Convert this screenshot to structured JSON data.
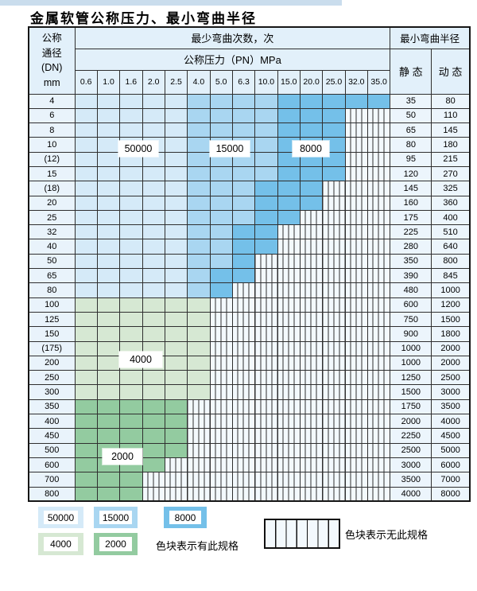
{
  "title": "金属软管公称压力、最小弯曲半径",
  "chart_data": {
    "type": "heatmap",
    "title": "金属软管公称压力、最小弯曲半径",
    "value_label": "最少弯曲次数，次",
    "x_label": "公称压力（PN）MPa",
    "x_categories": [
      "0.6",
      "1.0",
      "1.6",
      "2.0",
      "2.5",
      "4.0",
      "5.0",
      "6.3",
      "10.0",
      "15.0",
      "20.0",
      "25.0",
      "32.0",
      "35.0"
    ],
    "y_label": "公称通径(DN) mm",
    "y_categories": [
      "4",
      "6",
      "8",
      "10",
      "(12)",
      "15",
      "(18)",
      "20",
      "25",
      "32",
      "40",
      "50",
      "65",
      "80",
      "100",
      "125",
      "150",
      "(175)",
      "200",
      "250",
      "300",
      "350",
      "400",
      "450",
      "500",
      "600",
      "700",
      "800"
    ],
    "zone_legend": {
      "L": "50000",
      "M": "15000",
      "D": "8000",
      "G": "4000",
      "E": "2000",
      "X": "无此规格"
    },
    "radius_header": "最小弯曲半径",
    "static_header": "静 态",
    "dynamic_header": "动 态",
    "rows": [
      {
        "dn": "4",
        "zones": [
          "L",
          "L",
          "L",
          "L",
          "L",
          "M",
          "M",
          "M",
          "M",
          "D",
          "D",
          "D",
          "D",
          "D"
        ],
        "static": "35",
        "dynamic": "80"
      },
      {
        "dn": "6",
        "zones": [
          "L",
          "L",
          "L",
          "L",
          "L",
          "M",
          "M",
          "M",
          "M",
          "D",
          "D",
          "D",
          "X",
          "X"
        ],
        "static": "50",
        "dynamic": "110"
      },
      {
        "dn": "8",
        "zones": [
          "L",
          "L",
          "L",
          "L",
          "L",
          "M",
          "M",
          "M",
          "M",
          "D",
          "D",
          "D",
          "X",
          "X"
        ],
        "static": "65",
        "dynamic": "145"
      },
      {
        "dn": "10",
        "zones": [
          "L",
          "L",
          "L",
          "L",
          "L",
          "M",
          "M",
          "M",
          "M",
          "D",
          "D",
          "D",
          "X",
          "X"
        ],
        "static": "80",
        "dynamic": "180"
      },
      {
        "dn": "(12)",
        "zones": [
          "L",
          "L",
          "L",
          "L",
          "L",
          "M",
          "M",
          "M",
          "M",
          "D",
          "D",
          "D",
          "X",
          "X"
        ],
        "static": "95",
        "dynamic": "215"
      },
      {
        "dn": "15",
        "zones": [
          "L",
          "L",
          "L",
          "L",
          "L",
          "M",
          "M",
          "M",
          "M",
          "D",
          "D",
          "D",
          "X",
          "X"
        ],
        "static": "120",
        "dynamic": "270"
      },
      {
        "dn": "(18)",
        "zones": [
          "L",
          "L",
          "L",
          "L",
          "L",
          "M",
          "M",
          "M",
          "D",
          "D",
          "D",
          "X",
          "X",
          "X"
        ],
        "static": "145",
        "dynamic": "325"
      },
      {
        "dn": "20",
        "zones": [
          "L",
          "L",
          "L",
          "L",
          "L",
          "M",
          "M",
          "M",
          "D",
          "D",
          "D",
          "X",
          "X",
          "X"
        ],
        "static": "160",
        "dynamic": "360"
      },
      {
        "dn": "25",
        "zones": [
          "L",
          "L",
          "L",
          "L",
          "L",
          "M",
          "M",
          "M",
          "D",
          "D",
          "X",
          "X",
          "X",
          "X"
        ],
        "static": "175",
        "dynamic": "400"
      },
      {
        "dn": "32",
        "zones": [
          "L",
          "L",
          "L",
          "L",
          "L",
          "M",
          "M",
          "D",
          "D",
          "X",
          "X",
          "X",
          "X",
          "X"
        ],
        "static": "225",
        "dynamic": "510"
      },
      {
        "dn": "40",
        "zones": [
          "L",
          "L",
          "L",
          "L",
          "L",
          "M",
          "M",
          "D",
          "D",
          "X",
          "X",
          "X",
          "X",
          "X"
        ],
        "static": "280",
        "dynamic": "640"
      },
      {
        "dn": "50",
        "zones": [
          "L",
          "L",
          "L",
          "L",
          "L",
          "M",
          "M",
          "D",
          "X",
          "X",
          "X",
          "X",
          "X",
          "X"
        ],
        "static": "350",
        "dynamic": "800"
      },
      {
        "dn": "65",
        "zones": [
          "L",
          "L",
          "L",
          "L",
          "L",
          "M",
          "D",
          "D",
          "X",
          "X",
          "X",
          "X",
          "X",
          "X"
        ],
        "static": "390",
        "dynamic": "845"
      },
      {
        "dn": "80",
        "zones": [
          "L",
          "L",
          "L",
          "L",
          "L",
          "M",
          "D",
          "X",
          "X",
          "X",
          "X",
          "X",
          "X",
          "X"
        ],
        "static": "480",
        "dynamic": "1000"
      },
      {
        "dn": "100",
        "zones": [
          "G",
          "G",
          "G",
          "G",
          "G",
          "G",
          "X",
          "X",
          "X",
          "X",
          "X",
          "X",
          "X",
          "X"
        ],
        "static": "600",
        "dynamic": "1200"
      },
      {
        "dn": "125",
        "zones": [
          "G",
          "G",
          "G",
          "G",
          "G",
          "G",
          "X",
          "X",
          "X",
          "X",
          "X",
          "X",
          "X",
          "X"
        ],
        "static": "750",
        "dynamic": "1500"
      },
      {
        "dn": "150",
        "zones": [
          "G",
          "G",
          "G",
          "G",
          "G",
          "G",
          "X",
          "X",
          "X",
          "X",
          "X",
          "X",
          "X",
          "X"
        ],
        "static": "900",
        "dynamic": "1800"
      },
      {
        "dn": "(175)",
        "zones": [
          "G",
          "G",
          "G",
          "G",
          "G",
          "G",
          "X",
          "X",
          "X",
          "X",
          "X",
          "X",
          "X",
          "X"
        ],
        "static": "1000",
        "dynamic": "2000"
      },
      {
        "dn": "200",
        "zones": [
          "G",
          "G",
          "G",
          "G",
          "G",
          "G",
          "X",
          "X",
          "X",
          "X",
          "X",
          "X",
          "X",
          "X"
        ],
        "static": "1000",
        "dynamic": "2000"
      },
      {
        "dn": "250",
        "zones": [
          "G",
          "G",
          "G",
          "G",
          "G",
          "G",
          "X",
          "X",
          "X",
          "X",
          "X",
          "X",
          "X",
          "X"
        ],
        "static": "1250",
        "dynamic": "2500"
      },
      {
        "dn": "300",
        "zones": [
          "G",
          "G",
          "G",
          "G",
          "G",
          "G",
          "X",
          "X",
          "X",
          "X",
          "X",
          "X",
          "X",
          "X"
        ],
        "static": "1500",
        "dynamic": "3000"
      },
      {
        "dn": "350",
        "zones": [
          "E",
          "E",
          "E",
          "E",
          "E",
          "X",
          "X",
          "X",
          "X",
          "X",
          "X",
          "X",
          "X",
          "X"
        ],
        "static": "1750",
        "dynamic": "3500"
      },
      {
        "dn": "400",
        "zones": [
          "E",
          "E",
          "E",
          "E",
          "E",
          "X",
          "X",
          "X",
          "X",
          "X",
          "X",
          "X",
          "X",
          "X"
        ],
        "static": "2000",
        "dynamic": "4000"
      },
      {
        "dn": "450",
        "zones": [
          "E",
          "E",
          "E",
          "E",
          "E",
          "X",
          "X",
          "X",
          "X",
          "X",
          "X",
          "X",
          "X",
          "X"
        ],
        "static": "2250",
        "dynamic": "4500"
      },
      {
        "dn": "500",
        "zones": [
          "E",
          "E",
          "E",
          "E",
          "E",
          "X",
          "X",
          "X",
          "X",
          "X",
          "X",
          "X",
          "X",
          "X"
        ],
        "static": "2500",
        "dynamic": "5000"
      },
      {
        "dn": "600",
        "zones": [
          "E",
          "E",
          "E",
          "E",
          "X",
          "X",
          "X",
          "X",
          "X",
          "X",
          "X",
          "X",
          "X",
          "X"
        ],
        "static": "3000",
        "dynamic": "6000"
      },
      {
        "dn": "700",
        "zones": [
          "E",
          "E",
          "E",
          "X",
          "X",
          "X",
          "X",
          "X",
          "X",
          "X",
          "X",
          "X",
          "X",
          "X"
        ],
        "static": "3500",
        "dynamic": "7000"
      },
      {
        "dn": "800",
        "zones": [
          "E",
          "E",
          "E",
          "X",
          "X",
          "X",
          "X",
          "X",
          "X",
          "X",
          "X",
          "X",
          "X",
          "X"
        ],
        "static": "4000",
        "dynamic": "8000"
      }
    ]
  },
  "header": {
    "corner_line1": "公称",
    "corner_line2": "通径",
    "corner_line3": "(DN)",
    "corner_line4": "mm",
    "cycles": "最少弯曲次数，次",
    "pressure": "公称压力（PN）MPa",
    "radius": "最小弯曲半径",
    "static": "静 态",
    "dynamic": "动 态"
  },
  "overlay_labels": {
    "l50000": "50000",
    "l15000": "15000",
    "l8000": "8000",
    "l4000": "4000",
    "l2000": "2000"
  },
  "legend": {
    "sw50000": "50000",
    "sw15000": "15000",
    "sw8000": "8000",
    "sw4000": "4000",
    "sw2000": "2000",
    "has_spec_text": "色块表示有此规格",
    "no_spec_text": "色块表示无此规格"
  },
  "colors": {
    "zone_L": "#d5eaf8",
    "zone_M": "#a9d6f1",
    "zone_D": "#74c0e9",
    "zone_G": "#d6e8d3",
    "zone_E": "#93cba0",
    "hatch_bg": "#f3f9fd",
    "header_bg": "#e2f0fa",
    "grid": "#2f2f2f",
    "top_strip": "#cadded"
  }
}
